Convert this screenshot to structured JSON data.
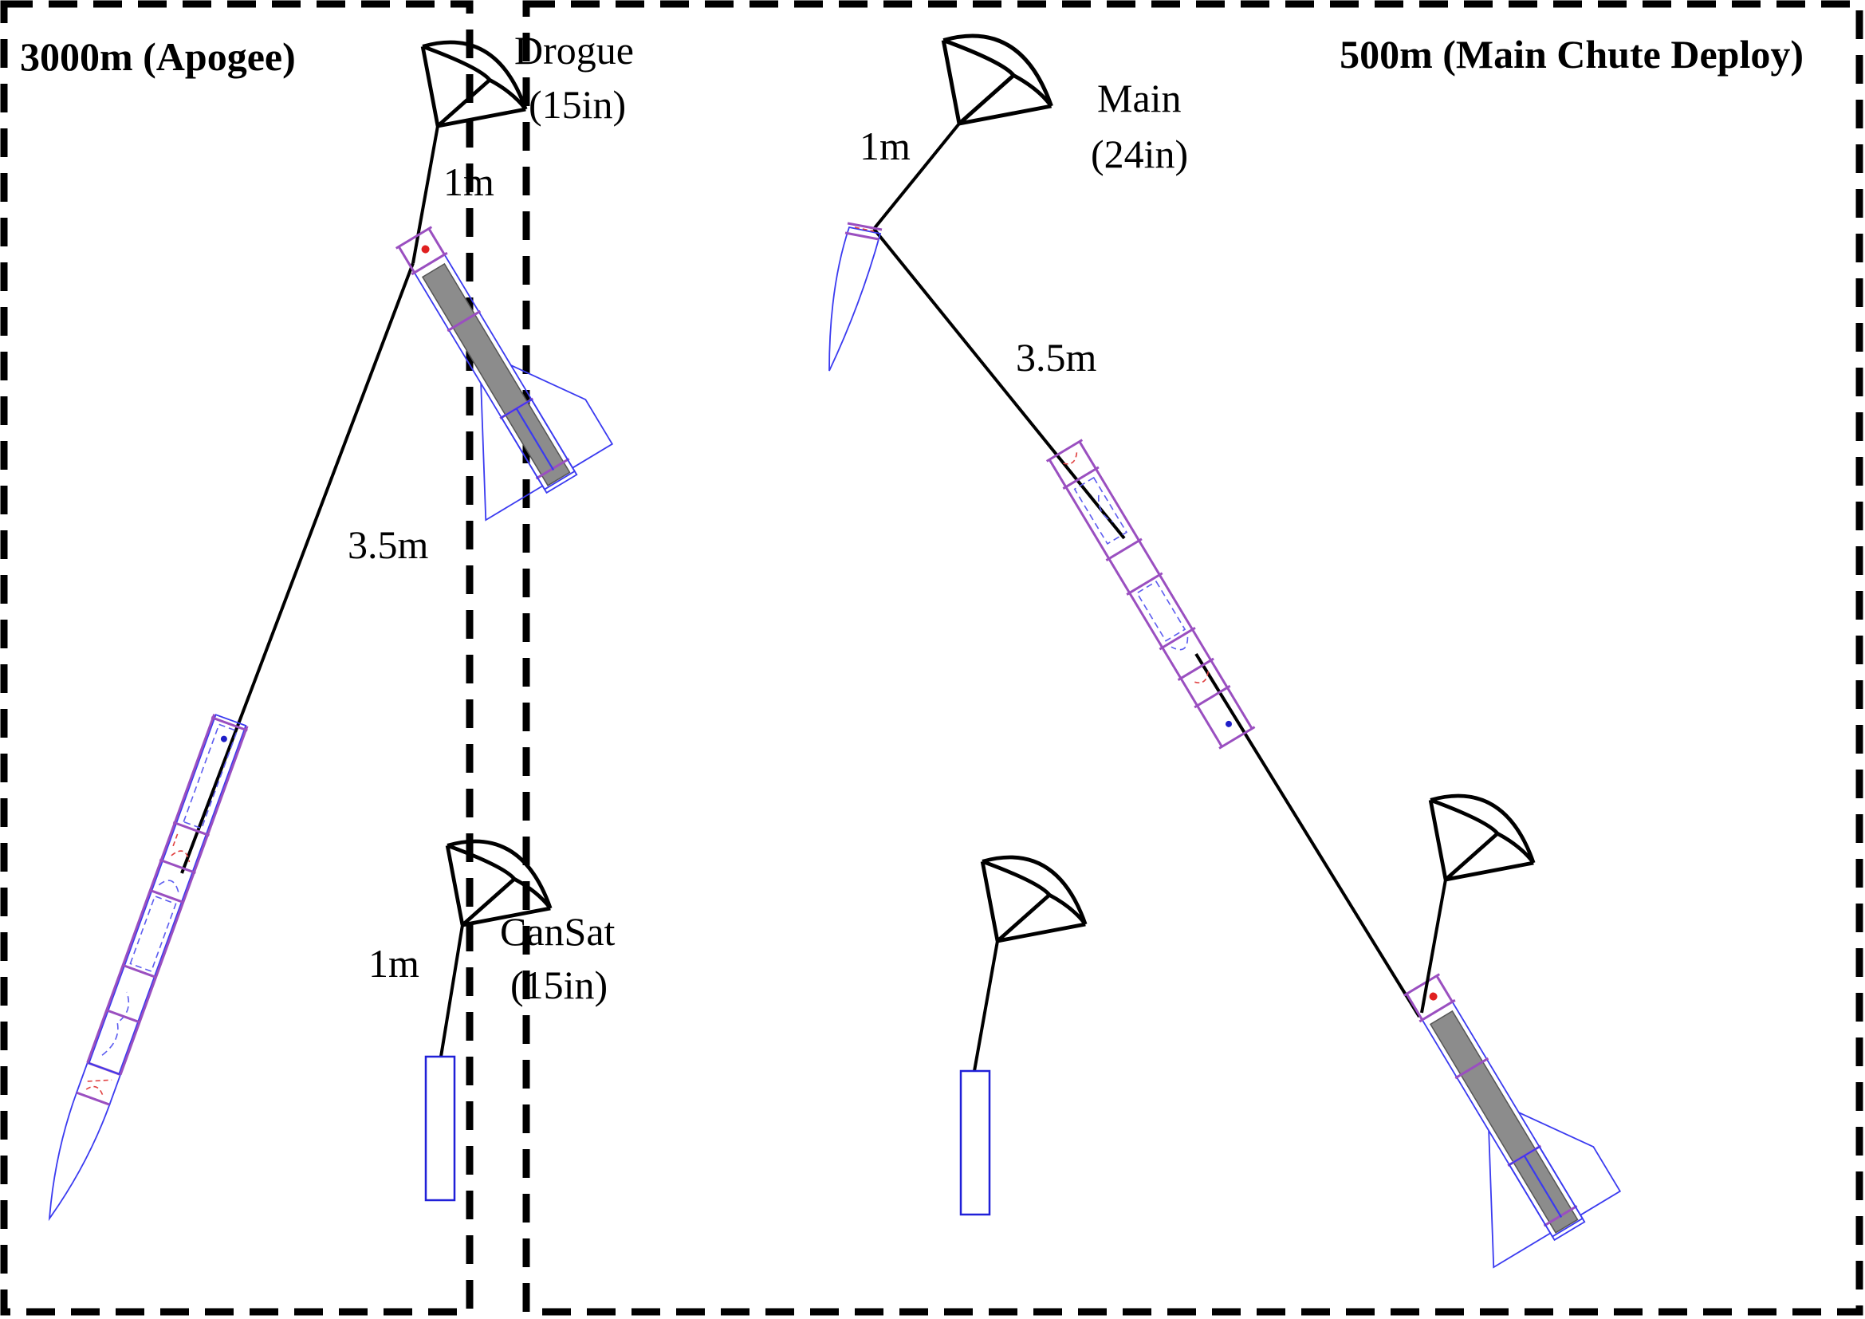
{
  "panels": {
    "apogee": {
      "title": "3000m (Apogee)"
    },
    "main_deploy": {
      "title": "500m (Main Chute Deploy)"
    }
  },
  "labels": {
    "drogue_line1": "Drogue",
    "drogue_line2": "(15in)",
    "drogue_tether": "1m",
    "apogee_shock_cord": "3.5m",
    "cansat_line1": "CanSat",
    "cansat_line2": "(15in)",
    "cansat_tether": "1m",
    "main_line1": "Main",
    "main_line2": "(24in)",
    "main_tether": "1m",
    "main_shock_cord": "3.5m"
  },
  "colors": {
    "outline": "#000000",
    "rocket_body": "#3a3af0",
    "coupler": "#9a4fc0",
    "motor": "#8c8c8c",
    "recovery_marker": "#e02020"
  }
}
